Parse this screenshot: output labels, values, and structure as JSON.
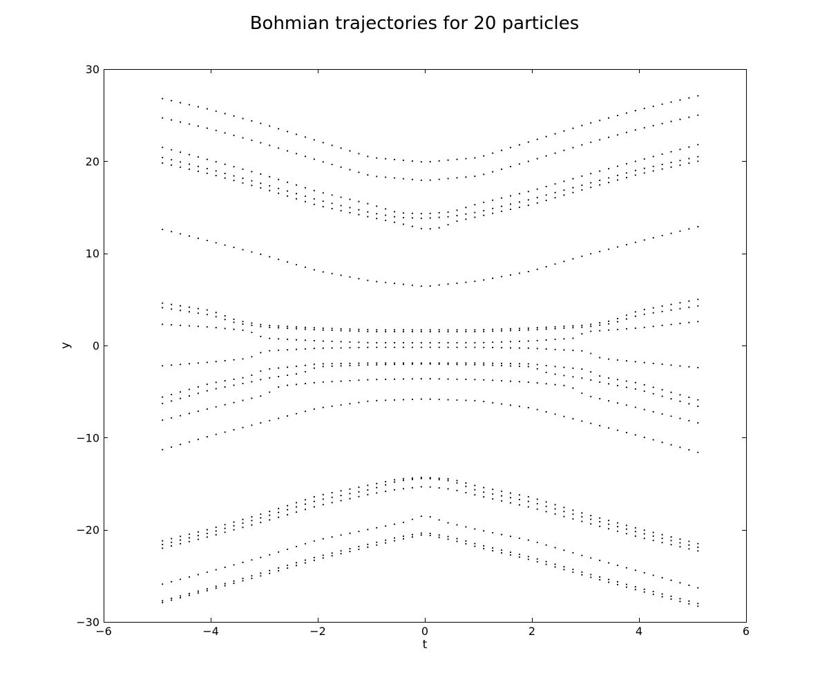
{
  "chart_data": {
    "type": "scatter",
    "title": "Bohmian trajectories for 20 particles",
    "xlabel": "t",
    "ylabel": "y",
    "xlim": [
      -6,
      6
    ],
    "ylim": [
      -30,
      30
    ],
    "xticks": [
      -6,
      -4,
      -2,
      0,
      2,
      4,
      6
    ],
    "yticks": [
      -30,
      -20,
      -10,
      0,
      10,
      20,
      30
    ],
    "x_tick_labels": [
      "−6",
      "−4",
      "−2",
      "0",
      "2",
      "4",
      "6"
    ],
    "y_tick_labels": [
      "−30",
      "−20",
      "−10",
      "0",
      "10",
      "20",
      "30"
    ],
    "grid": false,
    "marker": "dot",
    "marker_color": "#000000",
    "t_range": [
      -4.9,
      5.1
    ],
    "sample_count": 61,
    "series": [
      {
        "t": [
          -4.9,
          -4,
          -3,
          -2,
          -1,
          0,
          1,
          2,
          3,
          4,
          5.1
        ],
        "y": [
          26.8,
          25.6,
          24.0,
          22.2,
          20.4,
          19.9,
          20.4,
          22.2,
          24.0,
          25.6,
          27.1
        ]
      },
      {
        "t": [
          -4.9,
          -4,
          -3,
          -2,
          -1,
          0,
          1,
          2,
          3,
          4,
          5.1
        ],
        "y": [
          24.7,
          23.5,
          21.9,
          20.1,
          18.4,
          17.9,
          18.4,
          20.1,
          21.9,
          23.5,
          25.0
        ]
      },
      {
        "t": [
          -4.9,
          -4,
          -3,
          -2,
          -1,
          -0.5,
          0,
          0.5,
          1,
          2,
          3,
          4,
          5.1
        ],
        "y": [
          21.5,
          20.1,
          18.5,
          16.7,
          15.3,
          14.4,
          14.3,
          14.5,
          15.4,
          16.8,
          18.5,
          20.1,
          21.8
        ]
      },
      {
        "t": [
          -4.9,
          -4,
          -3,
          -2,
          -1,
          -0.5,
          0,
          0.5,
          1,
          2,
          3,
          4,
          5.1
        ],
        "y": [
          20.4,
          19.1,
          17.5,
          15.8,
          14.4,
          13.9,
          13.8,
          14.0,
          14.5,
          15.9,
          17.5,
          19.1,
          20.5
        ]
      },
      {
        "t": [
          -4.9,
          -4,
          -3,
          -2,
          -1,
          -0.5,
          0,
          0.3,
          0.6,
          1,
          2,
          3,
          4,
          5.1
        ],
        "y": [
          19.8,
          18.6,
          17.0,
          15.2,
          13.9,
          13.3,
          12.6,
          12.8,
          13.5,
          14.0,
          15.3,
          17.0,
          18.6,
          20.0
        ]
      },
      {
        "t": [
          -4.9,
          -4,
          -3,
          -2,
          -1,
          0,
          1,
          2,
          3,
          4,
          5.1
        ],
        "y": [
          12.6,
          11.3,
          9.8,
          8.1,
          7.0,
          6.4,
          7.0,
          8.1,
          9.8,
          11.3,
          12.9
        ]
      },
      {
        "t": [
          -4.9,
          -4,
          -3.5,
          -3,
          -2,
          -1,
          0,
          1,
          2,
          3,
          3.5,
          4,
          5.1
        ],
        "y": [
          4.6,
          3.8,
          2.7,
          2.2,
          1.9,
          1.7,
          1.7,
          1.7,
          1.9,
          2.2,
          2.7,
          3.8,
          5.0
        ]
      },
      {
        "t": [
          -4.9,
          -4,
          -3.5,
          -3,
          -2,
          -1,
          0,
          1,
          2,
          3,
          3.5,
          4,
          5.1
        ],
        "y": [
          4.1,
          3.3,
          2.4,
          2.0,
          1.7,
          1.5,
          1.5,
          1.5,
          1.7,
          2.0,
          2.4,
          3.3,
          4.3
        ]
      },
      {
        "t": [
          -4.9,
          -4,
          -3.3,
          -3,
          -2,
          -1,
          0,
          1,
          2,
          2.8,
          3,
          4,
          5.1
        ],
        "y": [
          2.3,
          2.0,
          1.6,
          0.8,
          0.5,
          0.3,
          0.3,
          0.3,
          0.5,
          0.8,
          1.5,
          1.9,
          2.6
        ]
      },
      {
        "t": [
          -4.9,
          -4,
          -3.3,
          -3,
          -2,
          -1,
          0,
          1,
          2,
          3,
          3.3,
          4,
          5.1
        ],
        "y": [
          -2.2,
          -1.8,
          -1.4,
          -0.6,
          -0.3,
          -0.2,
          -0.2,
          -0.2,
          -0.3,
          -0.6,
          -1.4,
          -1.8,
          -2.4
        ]
      },
      {
        "t": [
          -4.9,
          -4,
          -3.3,
          -3,
          -2.3,
          -2,
          -1,
          0,
          1,
          2,
          2.3,
          3,
          3.3,
          4,
          5.1
        ],
        "y": [
          -5.6,
          -4.1,
          -3.4,
          -2.6,
          -2.2,
          -2.0,
          -1.9,
          -1.9,
          -1.9,
          -2.0,
          -2.2,
          -2.6,
          -3.4,
          -4.1,
          -5.9
        ]
      },
      {
        "t": [
          -4.9,
          -4,
          -3.2,
          -3,
          -2.3,
          -2,
          -1,
          0,
          1,
          2,
          2.3,
          3,
          3.2,
          4,
          5.1
        ],
        "y": [
          -6.3,
          -4.8,
          -3.9,
          -3.6,
          -3.0,
          -2.3,
          -2.1,
          -2.0,
          -2.1,
          -2.3,
          -3.0,
          -3.6,
          -3.9,
          -4.8,
          -6.6
        ]
      },
      {
        "t": [
          -4.9,
          -4,
          -3,
          -2.7,
          -2,
          -1,
          0,
          1,
          2,
          2.7,
          3,
          4,
          5.1
        ],
        "y": [
          -8.1,
          -6.8,
          -5.4,
          -4.4,
          -4.0,
          -3.7,
          -3.6,
          -3.7,
          -4.0,
          -4.4,
          -5.4,
          -6.8,
          -8.4
        ]
      },
      {
        "t": [
          -4.9,
          -4,
          -3,
          -2,
          -1,
          0,
          1,
          2,
          3,
          4,
          5.1
        ],
        "y": [
          -11.3,
          -9.8,
          -8.3,
          -6.8,
          -6.0,
          -5.8,
          -6.0,
          -6.8,
          -8.3,
          -9.8,
          -11.6
        ]
      },
      {
        "t": [
          -4.9,
          -4,
          -3,
          -2,
          -1,
          -0.5,
          0,
          0.5,
          1,
          2,
          3,
          4,
          5.1
        ],
        "y": [
          -21.2,
          -19.9,
          -18.2,
          -16.3,
          -15.1,
          -14.5,
          -14.3,
          -14.5,
          -15.3,
          -16.5,
          -18.3,
          -19.9,
          -21.5
        ]
      },
      {
        "t": [
          -4.9,
          -4,
          -3,
          -2,
          -1,
          -0.5,
          0,
          0.5,
          1,
          2,
          3,
          4,
          5.1
        ],
        "y": [
          -21.6,
          -20.3,
          -18.6,
          -16.8,
          -15.6,
          -14.7,
          -14.4,
          -14.7,
          -15.8,
          -17.0,
          -18.7,
          -20.3,
          -21.9
        ]
      },
      {
        "t": [
          -4.9,
          -4,
          -3,
          -2,
          -1,
          -0.5,
          0,
          0.5,
          1,
          2,
          3,
          4,
          5.1
        ],
        "y": [
          -22.0,
          -20.7,
          -19.1,
          -17.4,
          -16.1,
          -15.6,
          -15.3,
          -15.6,
          -16.3,
          -17.6,
          -19.2,
          -20.8,
          -22.3
        ]
      },
      {
        "t": [
          -4.9,
          -4,
          -3,
          -2,
          -1,
          -0.4,
          0,
          0.4,
          1,
          2,
          3,
          4,
          5.1
        ],
        "y": [
          -25.9,
          -24.5,
          -22.9,
          -21.1,
          -19.9,
          -19.2,
          -18.4,
          -19.2,
          -20.0,
          -21.2,
          -22.9,
          -24.5,
          -26.3
        ]
      },
      {
        "t": [
          -4.9,
          -4,
          -3,
          -2,
          -1,
          -0.5,
          0,
          0.5,
          1,
          2,
          3,
          4,
          5.1
        ],
        "y": [
          -27.7,
          -26.3,
          -24.6,
          -22.9,
          -21.5,
          -20.8,
          -20.3,
          -20.8,
          -21.6,
          -23.0,
          -24.7,
          -26.3,
          -28.0
        ]
      },
      {
        "t": [
          -4.9,
          -4,
          -3,
          -2,
          -1,
          -0.5,
          0,
          0.5,
          1,
          2,
          3,
          4,
          5.1
        ],
        "y": [
          -27.9,
          -26.5,
          -24.9,
          -23.2,
          -21.8,
          -21.1,
          -20.5,
          -21.1,
          -21.9,
          -23.3,
          -25.0,
          -26.6,
          -28.3
        ]
      }
    ]
  }
}
